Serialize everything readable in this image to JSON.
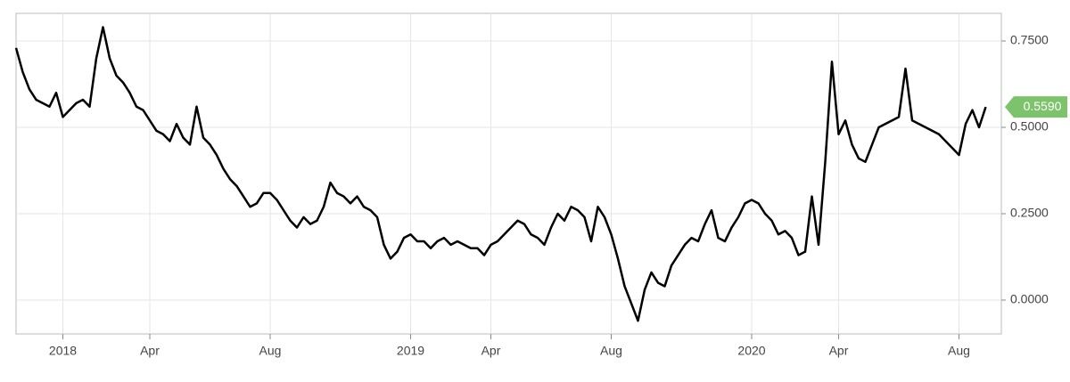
{
  "chart_data": {
    "type": "line",
    "categories": [
      null,
      null,
      null,
      null,
      null,
      null,
      null,
      "2018",
      null,
      null,
      null,
      null,
      null,
      null,
      null,
      null,
      null,
      null,
      null,
      null,
      "Apr",
      null,
      null,
      null,
      null,
      null,
      null,
      null,
      null,
      null,
      null,
      null,
      null,
      null,
      null,
      null,
      null,
      null,
      "Aug",
      null,
      null,
      null,
      null,
      null,
      null,
      null,
      null,
      null,
      null,
      null,
      null,
      null,
      null,
      null,
      null,
      null,
      null,
      null,
      null,
      "2019",
      null,
      null,
      null,
      null,
      null,
      null,
      null,
      null,
      null,
      null,
      null,
      "Apr",
      null,
      null,
      null,
      null,
      null,
      null,
      null,
      null,
      null,
      null,
      null,
      null,
      null,
      null,
      null,
      null,
      null,
      "Aug",
      null,
      null,
      null,
      null,
      null,
      null,
      null,
      null,
      null,
      null,
      null,
      null,
      null,
      null,
      null,
      null,
      null,
      null,
      null,
      null,
      "2020",
      null,
      null,
      null,
      null,
      null,
      null,
      null,
      null,
      null,
      null,
      null,
      null,
      "Apr",
      null,
      null,
      null,
      null,
      null,
      null,
      null,
      null,
      null,
      null,
      null,
      null,
      null,
      null,
      null,
      null,
      null,
      "Aug",
      null,
      null,
      null,
      null
    ],
    "values": [
      0.73,
      0.66,
      0.61,
      0.58,
      0.57,
      0.56,
      0.6,
      0.53,
      0.55,
      0.57,
      0.58,
      0.56,
      0.7,
      0.79,
      0.7,
      0.65,
      0.63,
      0.6,
      0.56,
      0.55,
      0.52,
      0.49,
      0.48,
      0.46,
      0.51,
      0.47,
      0.45,
      0.56,
      0.47,
      0.45,
      0.42,
      0.38,
      0.35,
      0.33,
      0.3,
      0.27,
      0.28,
      0.31,
      0.31,
      0.29,
      0.26,
      0.23,
      0.21,
      0.24,
      0.22,
      0.23,
      0.27,
      0.34,
      0.31,
      0.3,
      0.28,
      0.3,
      0.27,
      0.26,
      0.24,
      0.16,
      0.12,
      0.14,
      0.18,
      0.19,
      0.17,
      0.17,
      0.15,
      0.17,
      0.18,
      0.16,
      0.17,
      0.16,
      0.15,
      0.15,
      0.13,
      0.16,
      0.17,
      0.19,
      0.21,
      0.23,
      0.22,
      0.19,
      0.18,
      0.16,
      0.21,
      0.25,
      0.23,
      0.27,
      0.26,
      0.24,
      0.17,
      0.27,
      0.24,
      0.19,
      0.12,
      0.04,
      -0.01,
      -0.06,
      0.03,
      0.08,
      0.05,
      0.04,
      0.1,
      0.13,
      0.16,
      0.18,
      0.17,
      0.22,
      0.26,
      0.18,
      0.17,
      0.21,
      0.24,
      0.28,
      0.29,
      0.28,
      0.25,
      0.23,
      0.19,
      0.2,
      0.18,
      0.13,
      0.14,
      0.3,
      0.16,
      0.4,
      0.69,
      0.48,
      0.52,
      0.45,
      0.41,
      0.4,
      0.45,
      0.5,
      0.51,
      0.52,
      0.53,
      0.67,
      0.52,
      0.51,
      0.5,
      0.49,
      0.48,
      0.46,
      0.44,
      0.42,
      0.51,
      0.55,
      0.5,
      0.559
    ],
    "value_labels": [
      null,
      null,
      null,
      null,
      null,
      null,
      null,
      null,
      null,
      null,
      null,
      null,
      null,
      null,
      null,
      null,
      null,
      null,
      null,
      null,
      null,
      null,
      null,
      null,
      null,
      null,
      null,
      null,
      null,
      null,
      null,
      null,
      null,
      null,
      null,
      null,
      null,
      null,
      null,
      null,
      null,
      null,
      null,
      null,
      null,
      null,
      null,
      null,
      null,
      null,
      null,
      null,
      null,
      null,
      null,
      null,
      null,
      null,
      null,
      null,
      null,
      null,
      null,
      null,
      null,
      null,
      null,
      null,
      null,
      null,
      null,
      null,
      null,
      null,
      null,
      null,
      null,
      null,
      null,
      null,
      null,
      null,
      null,
      null,
      null,
      null,
      null,
      null,
      null,
      null,
      null,
      null,
      null,
      null,
      null,
      null,
      null,
      null,
      null,
      null,
      null,
      null,
      null,
      null,
      null,
      null,
      null,
      null,
      null,
      null,
      null,
      null,
      null,
      null,
      null,
      null,
      null,
      null,
      null,
      null,
      null,
      null,
      null,
      null,
      null,
      null,
      null,
      null,
      null,
      null,
      null,
      null,
      null,
      null,
      null,
      null,
      null,
      null,
      null,
      null,
      null,
      null,
      null,
      null,
      null,
      "0.5590"
    ],
    "color": "#000000",
    "label_color": "#7cc36b",
    "ylim": [
      -0.098,
      0.83
    ],
    "yticks": [
      {
        "value": 0,
        "label": "0.0000"
      },
      {
        "value": 0.25,
        "label": "0.2500"
      },
      {
        "value": 0.5,
        "label": "0.5000"
      },
      {
        "value": 0.75,
        "label": "0.7500"
      }
    ],
    "grid": true
  }
}
